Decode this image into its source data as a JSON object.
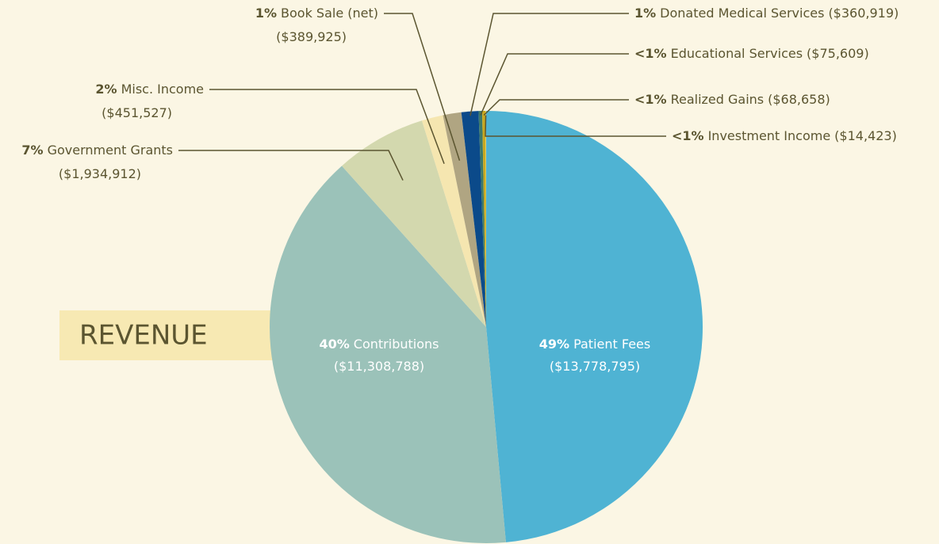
{
  "chart_data": {
    "type": "pie",
    "title": "REVENUE",
    "categories": [
      "Patient Fees",
      "Contributions",
      "Government Grants",
      "Misc. Income",
      "Book Sale (net)",
      "Donated Medical Services",
      "Educational Services",
      "Realized Gains",
      "Investment Income"
    ],
    "values": [
      13778795,
      11308788,
      1934912,
      451527,
      389925,
      360919,
      75609,
      68658,
      14423
    ],
    "value_labels": [
      "($13,778,795)",
      "($11,308,788)",
      "($1,934,912)",
      "($451,527)",
      "($389,925)",
      "($360,919)",
      "($75,609)",
      "($68,658)",
      "($14,423)"
    ],
    "percent_labels": [
      "49%",
      "40%",
      "7%",
      "2%",
      "1%",
      "1%",
      "<1%",
      "<1%",
      "<1%"
    ],
    "colors": [
      "#4fb3d3",
      "#9bc2b9",
      "#d3d8ae",
      "#f5e6b0",
      "#b0a582",
      "#0b4a8a",
      "#3d7a6a",
      "#c8a820",
      "#e8d060"
    ]
  }
}
